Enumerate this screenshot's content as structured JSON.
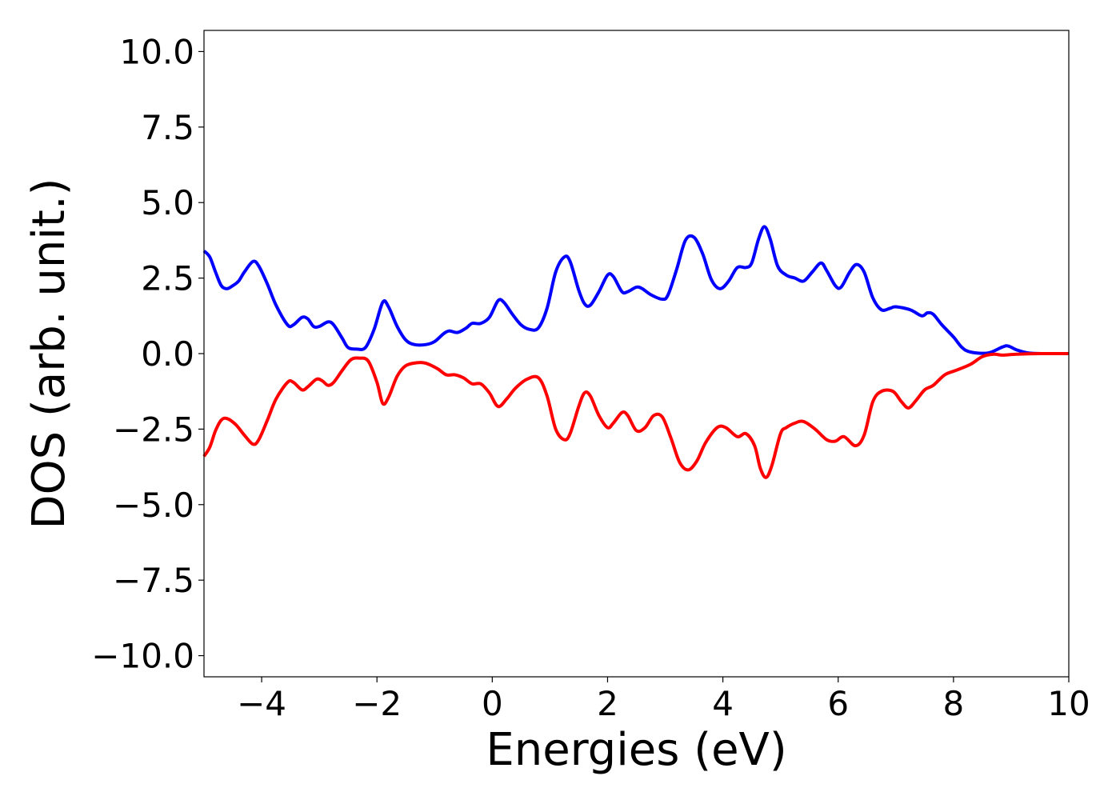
{
  "chart_data": {
    "type": "line",
    "title": "",
    "xlabel": "Energies (eV)",
    "ylabel": "DOS (arb. unit.)",
    "xlim": [
      -5,
      10
    ],
    "ylim": [
      -10.7,
      10.7
    ],
    "x_ticks": [
      -4,
      -2,
      0,
      2,
      4,
      6,
      8,
      10
    ],
    "x_tick_labels": [
      "−4",
      "−2",
      "0",
      "2",
      "4",
      "6",
      "8",
      "10"
    ],
    "y_ticks": [
      10.0,
      7.5,
      5.0,
      2.5,
      0.0,
      -2.5,
      -5.0,
      -7.5,
      -10.0
    ],
    "y_tick_labels": [
      "10.0",
      "7.5",
      "5.0",
      "2.5",
      "0.0",
      "−2.5",
      "−5.0",
      "−7.5",
      "−10.0"
    ],
    "grid": false,
    "legend": "none",
    "series": [
      {
        "color": "#0000ff",
        "points": [
          [
            -5.0,
            3.4
          ],
          [
            -4.9,
            3.2
          ],
          [
            -4.8,
            2.7
          ],
          [
            -4.7,
            2.25
          ],
          [
            -4.6,
            2.15
          ],
          [
            -4.5,
            2.25
          ],
          [
            -4.4,
            2.4
          ],
          [
            -4.3,
            2.7
          ],
          [
            -4.15,
            3.05
          ],
          [
            -4.05,
            2.9
          ],
          [
            -3.9,
            2.3
          ],
          [
            -3.75,
            1.6
          ],
          [
            -3.55,
            0.95
          ],
          [
            -3.45,
            0.95
          ],
          [
            -3.3,
            1.2
          ],
          [
            -3.2,
            1.15
          ],
          [
            -3.1,
            0.9
          ],
          [
            -3.0,
            0.9
          ],
          [
            -2.85,
            1.05
          ],
          [
            -2.75,
            0.95
          ],
          [
            -2.6,
            0.5
          ],
          [
            -2.5,
            0.2
          ],
          [
            -2.35,
            0.15
          ],
          [
            -2.2,
            0.2
          ],
          [
            -2.05,
            0.8
          ],
          [
            -1.9,
            1.7
          ],
          [
            -1.8,
            1.55
          ],
          [
            -1.65,
            0.9
          ],
          [
            -1.5,
            0.45
          ],
          [
            -1.35,
            0.3
          ],
          [
            -1.15,
            0.3
          ],
          [
            -1.0,
            0.4
          ],
          [
            -0.85,
            0.65
          ],
          [
            -0.75,
            0.75
          ],
          [
            -0.6,
            0.7
          ],
          [
            -0.45,
            0.85
          ],
          [
            -0.35,
            1.0
          ],
          [
            -0.2,
            1.0
          ],
          [
            -0.05,
            1.2
          ],
          [
            0.1,
            1.75
          ],
          [
            0.2,
            1.7
          ],
          [
            0.35,
            1.3
          ],
          [
            0.5,
            0.95
          ],
          [
            0.65,
            0.8
          ],
          [
            0.8,
            0.85
          ],
          [
            0.95,
            1.5
          ],
          [
            1.1,
            2.7
          ],
          [
            1.25,
            3.2
          ],
          [
            1.35,
            3.05
          ],
          [
            1.5,
            2.1
          ],
          [
            1.6,
            1.65
          ],
          [
            1.7,
            1.6
          ],
          [
            1.85,
            2.05
          ],
          [
            2.0,
            2.6
          ],
          [
            2.1,
            2.55
          ],
          [
            2.25,
            2.05
          ],
          [
            2.35,
            2.05
          ],
          [
            2.5,
            2.2
          ],
          [
            2.6,
            2.15
          ],
          [
            2.75,
            1.95
          ],
          [
            2.95,
            1.8
          ],
          [
            3.05,
            1.95
          ],
          [
            3.2,
            2.8
          ],
          [
            3.35,
            3.75
          ],
          [
            3.5,
            3.85
          ],
          [
            3.65,
            3.3
          ],
          [
            3.8,
            2.45
          ],
          [
            3.95,
            2.15
          ],
          [
            4.1,
            2.4
          ],
          [
            4.25,
            2.85
          ],
          [
            4.4,
            2.85
          ],
          [
            4.5,
            3.0
          ],
          [
            4.62,
            3.8
          ],
          [
            4.72,
            4.2
          ],
          [
            4.82,
            3.8
          ],
          [
            4.95,
            2.9
          ],
          [
            5.1,
            2.6
          ],
          [
            5.25,
            2.5
          ],
          [
            5.4,
            2.4
          ],
          [
            5.55,
            2.7
          ],
          [
            5.7,
            3.0
          ],
          [
            5.8,
            2.75
          ],
          [
            5.95,
            2.25
          ],
          [
            6.05,
            2.2
          ],
          [
            6.2,
            2.7
          ],
          [
            6.32,
            2.95
          ],
          [
            6.45,
            2.7
          ],
          [
            6.6,
            1.85
          ],
          [
            6.75,
            1.45
          ],
          [
            6.9,
            1.5
          ],
          [
            7.0,
            1.55
          ],
          [
            7.25,
            1.45
          ],
          [
            7.45,
            1.25
          ],
          [
            7.55,
            1.35
          ],
          [
            7.65,
            1.3
          ],
          [
            7.8,
            0.95
          ],
          [
            8.0,
            0.55
          ],
          [
            8.15,
            0.2
          ],
          [
            8.3,
            0.05
          ],
          [
            8.6,
            0.02
          ],
          [
            8.85,
            0.22
          ],
          [
            8.95,
            0.25
          ],
          [
            9.1,
            0.12
          ],
          [
            9.3,
            0.02
          ],
          [
            9.6,
            0.0
          ],
          [
            10.0,
            0.0
          ]
        ]
      },
      {
        "color": "#ff0000",
        "points": [
          [
            -5.0,
            -3.4
          ],
          [
            -4.9,
            -3.1
          ],
          [
            -4.8,
            -2.55
          ],
          [
            -4.7,
            -2.2
          ],
          [
            -4.6,
            -2.15
          ],
          [
            -4.45,
            -2.35
          ],
          [
            -4.3,
            -2.7
          ],
          [
            -4.15,
            -3.0
          ],
          [
            -4.05,
            -2.85
          ],
          [
            -3.9,
            -2.2
          ],
          [
            -3.75,
            -1.5
          ],
          [
            -3.55,
            -0.95
          ],
          [
            -3.45,
            -0.95
          ],
          [
            -3.3,
            -1.2
          ],
          [
            -3.2,
            -1.1
          ],
          [
            -3.05,
            -0.85
          ],
          [
            -2.95,
            -0.9
          ],
          [
            -2.85,
            -1.05
          ],
          [
            -2.75,
            -0.95
          ],
          [
            -2.6,
            -0.55
          ],
          [
            -2.45,
            -0.2
          ],
          [
            -2.3,
            -0.15
          ],
          [
            -2.15,
            -0.25
          ],
          [
            -2.0,
            -0.95
          ],
          [
            -1.9,
            -1.65
          ],
          [
            -1.8,
            -1.45
          ],
          [
            -1.65,
            -0.75
          ],
          [
            -1.5,
            -0.4
          ],
          [
            -1.3,
            -0.3
          ],
          [
            -1.15,
            -0.32
          ],
          [
            -0.95,
            -0.5
          ],
          [
            -0.8,
            -0.7
          ],
          [
            -0.65,
            -0.7
          ],
          [
            -0.5,
            -0.8
          ],
          [
            -0.35,
            -1.0
          ],
          [
            -0.2,
            -1.0
          ],
          [
            -0.05,
            -1.3
          ],
          [
            0.1,
            -1.75
          ],
          [
            0.25,
            -1.5
          ],
          [
            0.4,
            -1.15
          ],
          [
            0.6,
            -0.85
          ],
          [
            0.8,
            -0.8
          ],
          [
            0.95,
            -1.4
          ],
          [
            1.1,
            -2.5
          ],
          [
            1.25,
            -2.85
          ],
          [
            1.35,
            -2.65
          ],
          [
            1.5,
            -1.75
          ],
          [
            1.6,
            -1.3
          ],
          [
            1.7,
            -1.4
          ],
          [
            1.85,
            -2.05
          ],
          [
            2.0,
            -2.45
          ],
          [
            2.1,
            -2.3
          ],
          [
            2.25,
            -1.95
          ],
          [
            2.35,
            -2.05
          ],
          [
            2.5,
            -2.55
          ],
          [
            2.65,
            -2.45
          ],
          [
            2.8,
            -2.05
          ],
          [
            2.95,
            -2.1
          ],
          [
            3.1,
            -2.8
          ],
          [
            3.25,
            -3.6
          ],
          [
            3.4,
            -3.85
          ],
          [
            3.55,
            -3.55
          ],
          [
            3.7,
            -2.95
          ],
          [
            3.9,
            -2.45
          ],
          [
            4.05,
            -2.45
          ],
          [
            4.25,
            -2.75
          ],
          [
            4.4,
            -2.65
          ],
          [
            4.55,
            -3.05
          ],
          [
            4.65,
            -3.8
          ],
          [
            4.75,
            -4.1
          ],
          [
            4.85,
            -3.7
          ],
          [
            5.0,
            -2.65
          ],
          [
            5.1,
            -2.45
          ],
          [
            5.25,
            -2.3
          ],
          [
            5.4,
            -2.25
          ],
          [
            5.6,
            -2.5
          ],
          [
            5.8,
            -2.85
          ],
          [
            5.95,
            -2.9
          ],
          [
            6.1,
            -2.75
          ],
          [
            6.3,
            -3.05
          ],
          [
            6.45,
            -2.7
          ],
          [
            6.6,
            -1.6
          ],
          [
            6.75,
            -1.25
          ],
          [
            6.95,
            -1.25
          ],
          [
            7.1,
            -1.6
          ],
          [
            7.22,
            -1.8
          ],
          [
            7.35,
            -1.55
          ],
          [
            7.5,
            -1.2
          ],
          [
            7.65,
            -1.05
          ],
          [
            7.85,
            -0.7
          ],
          [
            8.05,
            -0.55
          ],
          [
            8.3,
            -0.35
          ],
          [
            8.5,
            -0.1
          ],
          [
            8.7,
            -0.02
          ],
          [
            8.85,
            -0.05
          ],
          [
            9.1,
            -0.02
          ],
          [
            9.5,
            0.0
          ],
          [
            10.0,
            0.0
          ]
        ]
      }
    ]
  }
}
